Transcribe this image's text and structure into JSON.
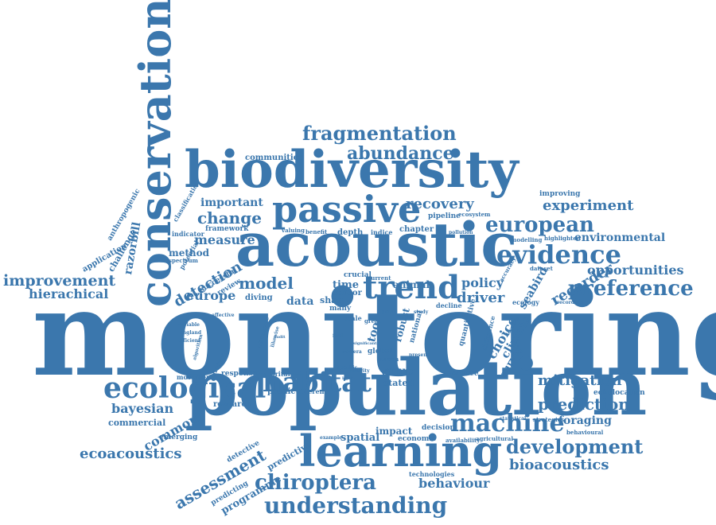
{
  "colors": {
    "word": "#3b77ad",
    "background": "#ffffff"
  },
  "words": [
    "monitoring",
    "population",
    "acoustic",
    "biodiversity",
    "passive",
    "conservation",
    "learning",
    "understanding",
    "chiroptera",
    "trend",
    "ecological",
    "habitat",
    "evidence",
    "preference",
    "machine",
    "development",
    "european",
    "fragmentation",
    "abundance",
    "improvement",
    "hierachical",
    "recovery",
    "experiment",
    "change",
    "important",
    "measure",
    "method",
    "detection",
    "model",
    "europe",
    "data",
    "shag",
    "time",
    "sensor",
    "policy",
    "driver",
    "recorder",
    "opportunities",
    "environmental",
    "mitigation",
    "prediction",
    "foraging",
    "echolocation",
    "bayesian",
    "commercial",
    "common",
    "assessment",
    "ecoacoustics",
    "bioacoustics",
    "behaviour",
    "impact",
    "spatial",
    "economic",
    "decision",
    "survey",
    "climate",
    "choice",
    "seabird",
    "tool",
    "value",
    "stated",
    "research",
    "predict",
    "different",
    "britain",
    "response",
    "analysis",
    "emerging",
    "movement",
    "detective",
    "predictive",
    "predicting",
    "programme",
    "technologies",
    "communities",
    "classification",
    "anthropogenic",
    "application",
    "challenge",
    "razorbill",
    "framework",
    "indicator",
    "potential",
    "spectrum",
    "successful",
    "review",
    "diving",
    "valuing",
    "benefit",
    "depth",
    "indice",
    "chapter",
    "pipeline",
    "ecosystem",
    "pollution",
    "animal",
    "crucial",
    "current",
    "improving",
    "modelling",
    "highlighted",
    "dataset",
    "ecology",
    "recording",
    "accuracy",
    "robust",
    "national",
    "quantitative",
    "difference",
    "location",
    "behavioural",
    "agricultural",
    "statistical",
    "availability",
    "example",
    "effective",
    "variable",
    "england",
    "efficient",
    "algorithm",
    "ultrasonic",
    "likewise",
    "camera",
    "activity",
    "specific",
    "source",
    "decline",
    "gap",
    "global",
    "human",
    "study",
    "present",
    "great",
    "significant",
    "many",
    "scale",
    "fold",
    "audit",
    "light",
    "strategies"
  ]
}
